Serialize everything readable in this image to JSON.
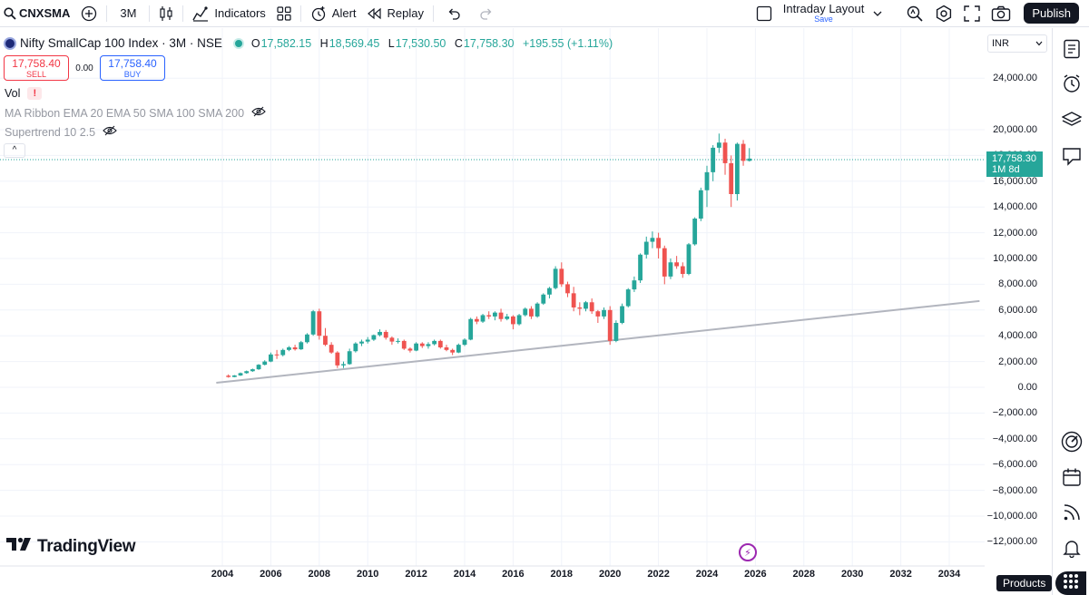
{
  "toolbar": {
    "symbol": "CNXSMA",
    "interval": "3M",
    "indicators_label": "Indicators",
    "alert_label": "Alert",
    "replay_label": "Replay",
    "layout_name": "Intraday Layout",
    "layout_save": "Save",
    "publish_label": "Publish"
  },
  "legend": {
    "title": "Nifty SmallCap 100 Index · 3M · NSE",
    "o_key": "O",
    "o_val": "17,582.15",
    "h_key": "H",
    "h_val": "18,569.45",
    "l_key": "L",
    "l_val": "17,530.50",
    "c_key": "C",
    "c_val": "17,758.30",
    "change": "+195.55 (+1.11%)",
    "sell_price": "17,758.40",
    "sell_label": "SELL",
    "spread": "0.00",
    "buy_price": "17,758.40",
    "buy_label": "BUY",
    "vol_label": "Vol",
    "vol_warning": "!",
    "ma_ribbon": "MA Ribbon EMA 20 EMA 50 SMA 100 SMA 200",
    "supertrend": "Supertrend 10 2.5",
    "collapse": "^"
  },
  "price_scale": {
    "currency": "INR",
    "labels": [
      "24,000.00",
      "20,000.00",
      "18,000.00",
      "16,000.00",
      "14,000.00",
      "12,000.00",
      "10,000.00",
      "8,000.00",
      "6,000.00",
      "4,000.00",
      "2,000.00",
      "0.00",
      "−2,000.00",
      "−4,000.00",
      "−6,000.00",
      "−8,000.00",
      "−10,000.00",
      "−12,000.00"
    ],
    "last_price": "17,758.30",
    "last_countdown": "1M 8d"
  },
  "time_scale": {
    "labels": [
      "2004",
      "2006",
      "2008",
      "2010",
      "2012",
      "2014",
      "2016",
      "2018",
      "2020",
      "2022",
      "2024",
      "2026",
      "2028",
      "2030",
      "2032",
      "2034"
    ]
  },
  "watermark": "TradingView",
  "products_label": "Products",
  "colors": {
    "up": "#26a69a",
    "down": "#ef5350",
    "trendline": "#b2b5be",
    "accent": "#2962ff"
  },
  "chart_data": {
    "type": "candlestick",
    "title": "Nifty SmallCap 100 Index · 3M · NSE",
    "currency": "INR",
    "ylim": [
      -13000,
      26000
    ],
    "candles": [
      {
        "t": "2004-Q2",
        "o": 900,
        "h": 1000,
        "l": 750,
        "c": 800
      },
      {
        "t": "2004-Q3",
        "o": 800,
        "h": 950,
        "l": 780,
        "c": 920
      },
      {
        "t": "2004-Q4",
        "o": 920,
        "h": 1150,
        "l": 880,
        "c": 1100
      },
      {
        "t": "2005-Q1",
        "o": 1100,
        "h": 1300,
        "l": 1050,
        "c": 1250
      },
      {
        "t": "2005-Q2",
        "o": 1250,
        "h": 1450,
        "l": 1200,
        "c": 1400
      },
      {
        "t": "2005-Q3",
        "o": 1400,
        "h": 1800,
        "l": 1350,
        "c": 1750
      },
      {
        "t": "2005-Q4",
        "o": 1750,
        "h": 2100,
        "l": 1700,
        "c": 2000
      },
      {
        "t": "2006-Q1",
        "o": 2000,
        "h": 2700,
        "l": 1950,
        "c": 2550
      },
      {
        "t": "2006-Q2",
        "o": 2550,
        "h": 2900,
        "l": 2200,
        "c": 2500
      },
      {
        "t": "2006-Q3",
        "o": 2500,
        "h": 3000,
        "l": 2400,
        "c": 2900
      },
      {
        "t": "2006-Q4",
        "o": 2900,
        "h": 3200,
        "l": 2800,
        "c": 3100
      },
      {
        "t": "2007-Q1",
        "o": 3100,
        "h": 3300,
        "l": 2850,
        "c": 2950
      },
      {
        "t": "2007-Q2",
        "o": 2950,
        "h": 3600,
        "l": 2900,
        "c": 3500
      },
      {
        "t": "2007-Q3",
        "o": 3500,
        "h": 4200,
        "l": 3400,
        "c": 4100
      },
      {
        "t": "2007-Q4",
        "o": 4100,
        "h": 6000,
        "l": 4000,
        "c": 5900
      },
      {
        "t": "2008-Q1",
        "o": 5900,
        "h": 6100,
        "l": 3700,
        "c": 4000
      },
      {
        "t": "2008-Q2",
        "o": 4000,
        "h": 4600,
        "l": 3200,
        "c": 3300
      },
      {
        "t": "2008-Q3",
        "o": 3300,
        "h": 3500,
        "l": 2600,
        "c": 2700
      },
      {
        "t": "2008-Q4",
        "o": 2700,
        "h": 2800,
        "l": 1500,
        "c": 1700
      },
      {
        "t": "2009-Q1",
        "o": 1700,
        "h": 2000,
        "l": 1500,
        "c": 1800
      },
      {
        "t": "2009-Q2",
        "o": 1800,
        "h": 3000,
        "l": 1750,
        "c": 2800
      },
      {
        "t": "2009-Q3",
        "o": 2800,
        "h": 3500,
        "l": 2700,
        "c": 3400
      },
      {
        "t": "2009-Q4",
        "o": 3400,
        "h": 3700,
        "l": 3200,
        "c": 3550
      },
      {
        "t": "2010-Q1",
        "o": 3550,
        "h": 3900,
        "l": 3400,
        "c": 3700
      },
      {
        "t": "2010-Q2",
        "o": 3700,
        "h": 4100,
        "l": 3600,
        "c": 4050
      },
      {
        "t": "2010-Q3",
        "o": 4050,
        "h": 4500,
        "l": 3950,
        "c": 4300
      },
      {
        "t": "2010-Q4",
        "o": 4300,
        "h": 4450,
        "l": 3700,
        "c": 3850
      },
      {
        "t": "2011-Q1",
        "o": 3850,
        "h": 3950,
        "l": 3300,
        "c": 3550
      },
      {
        "t": "2011-Q2",
        "o": 3550,
        "h": 3800,
        "l": 3400,
        "c": 3600
      },
      {
        "t": "2011-Q3",
        "o": 3600,
        "h": 3700,
        "l": 2900,
        "c": 3000
      },
      {
        "t": "2011-Q4",
        "o": 3000,
        "h": 3100,
        "l": 2700,
        "c": 2850
      },
      {
        "t": "2012-Q1",
        "o": 2850,
        "h": 3500,
        "l": 2800,
        "c": 3400
      },
      {
        "t": "2012-Q2",
        "o": 3400,
        "h": 3500,
        "l": 3050,
        "c": 3200
      },
      {
        "t": "2012-Q3",
        "o": 3200,
        "h": 3500,
        "l": 3000,
        "c": 3350
      },
      {
        "t": "2012-Q4",
        "o": 3350,
        "h": 3700,
        "l": 3250,
        "c": 3600
      },
      {
        "t": "2013-Q1",
        "o": 3600,
        "h": 3700,
        "l": 3000,
        "c": 3100
      },
      {
        "t": "2013-Q2",
        "o": 3100,
        "h": 3300,
        "l": 2800,
        "c": 2900
      },
      {
        "t": "2013-Q3",
        "o": 2900,
        "h": 3000,
        "l": 2500,
        "c": 2700
      },
      {
        "t": "2013-Q4",
        "o": 2700,
        "h": 3400,
        "l": 2650,
        "c": 3300
      },
      {
        "t": "2014-Q1",
        "o": 3300,
        "h": 3800,
        "l": 3200,
        "c": 3700
      },
      {
        "t": "2014-Q2",
        "o": 3700,
        "h": 5400,
        "l": 3650,
        "c": 5300
      },
      {
        "t": "2014-Q3",
        "o": 5300,
        "h": 5500,
        "l": 4900,
        "c": 5100
      },
      {
        "t": "2014-Q4",
        "o": 5100,
        "h": 5700,
        "l": 5000,
        "c": 5600
      },
      {
        "t": "2015-Q1",
        "o": 5600,
        "h": 5900,
        "l": 5300,
        "c": 5500
      },
      {
        "t": "2015-Q2",
        "o": 5500,
        "h": 5900,
        "l": 5200,
        "c": 5800
      },
      {
        "t": "2015-Q3",
        "o": 5800,
        "h": 6100,
        "l": 5100,
        "c": 5300
      },
      {
        "t": "2015-Q4",
        "o": 5300,
        "h": 5700,
        "l": 5200,
        "c": 5500
      },
      {
        "t": "2016-Q1",
        "o": 5500,
        "h": 5600,
        "l": 4500,
        "c": 4900
      },
      {
        "t": "2016-Q2",
        "o": 4900,
        "h": 5700,
        "l": 4800,
        "c": 5600
      },
      {
        "t": "2016-Q3",
        "o": 5600,
        "h": 6200,
        "l": 5500,
        "c": 6100
      },
      {
        "t": "2016-Q4",
        "o": 6100,
        "h": 6300,
        "l": 5300,
        "c": 5500
      },
      {
        "t": "2017-Q1",
        "o": 5500,
        "h": 6600,
        "l": 5400,
        "c": 6500
      },
      {
        "t": "2017-Q2",
        "o": 6500,
        "h": 7300,
        "l": 6400,
        "c": 7200
      },
      {
        "t": "2017-Q3",
        "o": 7200,
        "h": 7800,
        "l": 6900,
        "c": 7700
      },
      {
        "t": "2017-Q4",
        "o": 7700,
        "h": 9400,
        "l": 7600,
        "c": 9200
      },
      {
        "t": "2018-Q1",
        "o": 9200,
        "h": 9700,
        "l": 7800,
        "c": 8000
      },
      {
        "t": "2018-Q2",
        "o": 8000,
        "h": 8200,
        "l": 7000,
        "c": 7300
      },
      {
        "t": "2018-Q3",
        "o": 7300,
        "h": 7800,
        "l": 5900,
        "c": 6200
      },
      {
        "t": "2018-Q4",
        "o": 6200,
        "h": 6600,
        "l": 5600,
        "c": 6100
      },
      {
        "t": "2019-Q1",
        "o": 6100,
        "h": 6700,
        "l": 5900,
        "c": 6600
      },
      {
        "t": "2019-Q2",
        "o": 6600,
        "h": 6900,
        "l": 5700,
        "c": 5900
      },
      {
        "t": "2019-Q3",
        "o": 5900,
        "h": 6000,
        "l": 5000,
        "c": 5500
      },
      {
        "t": "2019-Q4",
        "o": 5500,
        "h": 6200,
        "l": 5300,
        "c": 6000
      },
      {
        "t": "2020-Q1",
        "o": 6000,
        "h": 6300,
        "l": 3300,
        "c": 3600
      },
      {
        "t": "2020-Q2",
        "o": 3600,
        "h": 5200,
        "l": 3500,
        "c": 5000
      },
      {
        "t": "2020-Q3",
        "o": 5000,
        "h": 6500,
        "l": 4900,
        "c": 6300
      },
      {
        "t": "2020-Q4",
        "o": 6300,
        "h": 7700,
        "l": 6200,
        "c": 7600
      },
      {
        "t": "2021-Q1",
        "o": 7600,
        "h": 8600,
        "l": 7400,
        "c": 8300
      },
      {
        "t": "2021-Q2",
        "o": 8300,
        "h": 10400,
        "l": 8100,
        "c": 10300
      },
      {
        "t": "2021-Q3",
        "o": 10300,
        "h": 11700,
        "l": 10000,
        "c": 11300
      },
      {
        "t": "2021-Q4",
        "o": 11300,
        "h": 12100,
        "l": 10800,
        "c": 11600
      },
      {
        "t": "2022-Q1",
        "o": 11600,
        "h": 12000,
        "l": 10000,
        "c": 10800
      },
      {
        "t": "2022-Q2",
        "o": 10800,
        "h": 11000,
        "l": 8000,
        "c": 8600
      },
      {
        "t": "2022-Q3",
        "o": 8600,
        "h": 10000,
        "l": 8400,
        "c": 9700
      },
      {
        "t": "2022-Q4",
        "o": 9700,
        "h": 10200,
        "l": 9200,
        "c": 9400
      },
      {
        "t": "2023-Q1",
        "o": 9400,
        "h": 9700,
        "l": 8500,
        "c": 8800
      },
      {
        "t": "2023-Q2",
        "o": 8800,
        "h": 11200,
        "l": 8700,
        "c": 11100
      },
      {
        "t": "2023-Q3",
        "o": 11100,
        "h": 13200,
        "l": 11000,
        "c": 13100
      },
      {
        "t": "2023-Q4",
        "o": 13100,
        "h": 15500,
        "l": 12900,
        "c": 15300
      },
      {
        "t": "2024-Q1",
        "o": 15300,
        "h": 17200,
        "l": 14000,
        "c": 16700
      },
      {
        "t": "2024-Q2",
        "o": 16700,
        "h": 18800,
        "l": 16000,
        "c": 18600
      },
      {
        "t": "2024-Q3",
        "o": 18600,
        "h": 19700,
        "l": 18200,
        "c": 19000
      },
      {
        "t": "2024-Q4",
        "o": 19000,
        "h": 19300,
        "l": 16500,
        "c": 17400
      },
      {
        "t": "2025-Q1",
        "o": 17400,
        "h": 18000,
        "l": 14000,
        "c": 15000
      },
      {
        "t": "2025-Q2",
        "o": 15000,
        "h": 19000,
        "l": 14500,
        "c": 18900
      },
      {
        "t": "2025-Q3",
        "o": 18900,
        "h": 19200,
        "l": 17200,
        "c": 17582
      },
      {
        "t": "2025-Q4",
        "o": 17582.15,
        "h": 18569.45,
        "l": 17530.5,
        "c": 17758.3
      }
    ],
    "trendline": [
      {
        "x": "2003-Q4",
        "y": 350
      },
      {
        "x": "2035-Q2",
        "y": 6700
      }
    ]
  }
}
